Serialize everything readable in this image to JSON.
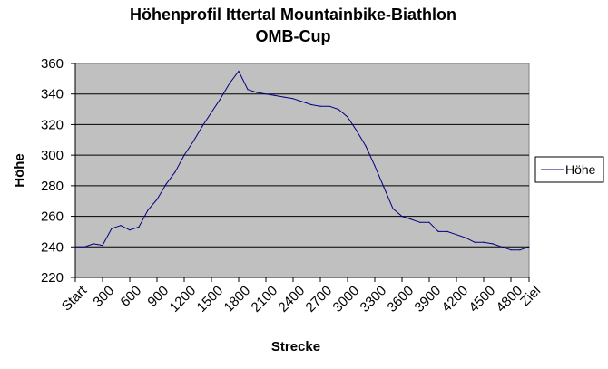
{
  "chart_data": {
    "type": "line",
    "title": "Höhenprofil Ittertal Mountainbike-Biathlon",
    "subtitle": "OMB-Cup",
    "xlabel": "Strecke",
    "ylabel": "Höhe",
    "ylim": [
      220,
      360
    ],
    "yticks": [
      "220",
      "240",
      "260",
      "280",
      "300",
      "320",
      "340",
      "360"
    ],
    "grid": true,
    "legend_position": "right",
    "x_tick_labels": [
      "Start",
      "300",
      "600",
      "900",
      "1200",
      "1500",
      "1800",
      "2100",
      "2400",
      "2700",
      "3000",
      "3300",
      "3600",
      "3900",
      "4200",
      "4500",
      "4800",
      "Ziel"
    ],
    "x_tick_step": 3,
    "categories": [
      "Start",
      "100",
      "200",
      "300",
      "400",
      "500",
      "600",
      "700",
      "800",
      "900",
      "1000",
      "1100",
      "1200",
      "1300",
      "1400",
      "1500",
      "1600",
      "1700",
      "1800",
      "1900",
      "2000",
      "2100",
      "2200",
      "2300",
      "2400",
      "2500",
      "2600",
      "2700",
      "2800",
      "2900",
      "3000",
      "3100",
      "3200",
      "3300",
      "3400",
      "3500",
      "3600",
      "3700",
      "3800",
      "3900",
      "4000",
      "4100",
      "4200",
      "4300",
      "4400",
      "4500",
      "4600",
      "4700",
      "4800",
      "4900",
      "Ziel"
    ],
    "series": [
      {
        "name": "Höhe",
        "color": "#000080",
        "values": [
          240,
          240,
          242,
          241,
          252,
          254,
          251,
          253,
          264,
          271,
          281,
          289,
          300,
          309,
          319,
          328,
          337,
          347,
          355,
          343,
          341,
          340,
          339,
          338,
          337,
          335,
          333,
          332,
          332,
          330,
          325,
          316,
          306,
          293,
          279,
          265,
          260,
          258,
          256,
          256,
          250,
          250,
          248,
          246,
          243,
          243,
          242,
          240,
          238,
          238,
          240
        ]
      }
    ],
    "plot_background": "#c0c0c0",
    "gridline_color": "#000000"
  }
}
